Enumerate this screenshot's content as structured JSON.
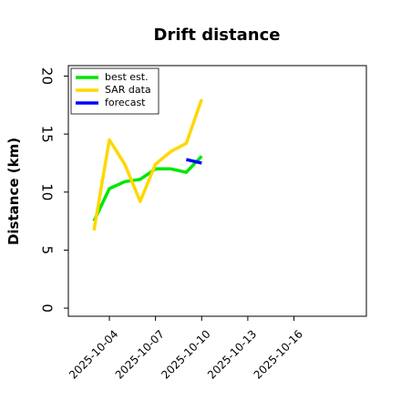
{
  "chart_data": {
    "type": "line",
    "title": "Drift distance",
    "y_label": "Distance (km)",
    "x": [
      "2025-10-03",
      "2025-10-04",
      "2025-10-05",
      "2025-10-06",
      "2025-10-07",
      "2025-10-08",
      "2025-10-09",
      "2025-10-10"
    ],
    "series": [
      {
        "name": "best est.",
        "color": "#00e600",
        "values": [
          7.5,
          10.3,
          10.9,
          11.1,
          12.0,
          12.0,
          11.7,
          13.1
        ]
      },
      {
        "name": "SAR data",
        "color": "#ffd700",
        "values": [
          6.7,
          14.5,
          12.4,
          9.2,
          12.4,
          13.5,
          14.2,
          18.0
        ]
      },
      {
        "name": "forecast",
        "color": "#0000ff",
        "values": [
          null,
          null,
          null,
          null,
          null,
          null,
          12.8,
          12.5
        ]
      }
    ],
    "xlim": [
      "2025-10-01T08:00",
      "2025-10-20T17:00"
    ],
    "xticks": [
      "2025-10-04",
      "2025-10-07",
      "2025-10-10",
      "2025-10-13",
      "2025-10-16"
    ],
    "ylim": [
      -0.7,
      20.9
    ],
    "yticks": [
      0,
      5,
      10,
      15,
      20
    ],
    "legend": "upper left"
  }
}
